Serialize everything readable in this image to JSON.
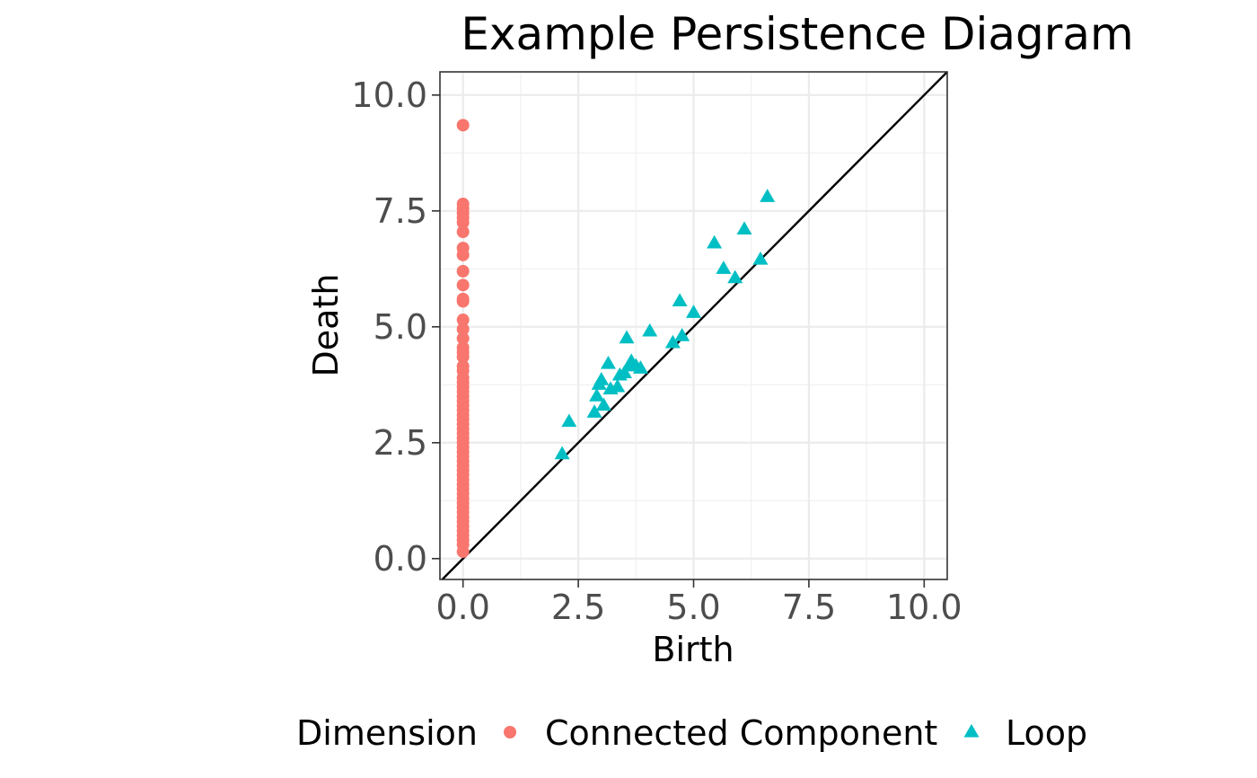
{
  "chart_data": {
    "type": "scatter",
    "title": "Example Persistence Diagram",
    "xlabel": "Birth",
    "ylabel": "Death",
    "xlim": [
      -0.5,
      10.5
    ],
    "ylim": [
      -0.45,
      10.5
    ],
    "x_ticks": [
      0.0,
      2.5,
      5.0,
      7.5,
      10.0
    ],
    "x_tick_labels": [
      "0.0",
      "2.5",
      "5.0",
      "7.5",
      "10.0"
    ],
    "y_ticks": [
      0.0,
      2.5,
      5.0,
      7.5,
      10.0
    ],
    "y_tick_labels": [
      "0.0",
      "2.5",
      "5.0",
      "7.5",
      "10.0"
    ],
    "grid": true,
    "diagonal_reference_line": true,
    "legend_position": "bottom",
    "legend_title": "Dimension",
    "series": [
      {
        "name": "Connected Component",
        "marker": "circle",
        "color": "#F8766D",
        "points": [
          [
            0,
            9.35
          ],
          [
            0,
            7.65
          ],
          [
            0,
            7.55
          ],
          [
            0,
            7.45
          ],
          [
            0,
            7.35
          ],
          [
            0,
            7.25
          ],
          [
            0,
            7.05
          ],
          [
            0,
            6.7
          ],
          [
            0,
            6.55
          ],
          [
            0,
            6.2
          ],
          [
            0,
            5.9
          ],
          [
            0,
            5.6
          ],
          [
            0,
            5.55
          ],
          [
            0,
            5.15
          ],
          [
            0,
            4.95
          ],
          [
            0,
            4.75
          ],
          [
            0,
            4.55
          ],
          [
            0,
            4.45
          ],
          [
            0,
            4.35
          ],
          [
            0,
            4.15
          ],
          [
            0,
            4.05
          ],
          [
            0,
            3.9
          ],
          [
            0,
            3.8
          ],
          [
            0,
            3.7
          ],
          [
            0,
            3.6
          ],
          [
            0,
            3.5
          ],
          [
            0,
            3.4
          ],
          [
            0,
            3.3
          ],
          [
            0,
            3.2
          ],
          [
            0,
            3.1
          ],
          [
            0,
            3.0
          ],
          [
            0,
            2.9
          ],
          [
            0,
            2.8
          ],
          [
            0,
            2.7
          ],
          [
            0,
            2.6
          ],
          [
            0,
            2.5
          ],
          [
            0,
            2.4
          ],
          [
            0,
            2.3
          ],
          [
            0,
            2.2
          ],
          [
            0,
            2.1
          ],
          [
            0,
            2.0
          ],
          [
            0,
            1.9
          ],
          [
            0,
            1.8
          ],
          [
            0,
            1.7
          ],
          [
            0,
            1.6
          ],
          [
            0,
            1.5
          ],
          [
            0,
            1.4
          ],
          [
            0,
            1.3
          ],
          [
            0,
            1.2
          ],
          [
            0,
            1.1
          ],
          [
            0,
            1.0
          ],
          [
            0,
            0.9
          ],
          [
            0,
            0.8
          ],
          [
            0,
            0.7
          ],
          [
            0,
            0.6
          ],
          [
            0,
            0.5
          ],
          [
            0,
            0.4
          ],
          [
            0,
            0.3
          ],
          [
            0,
            0.15
          ]
        ]
      },
      {
        "name": "Loop",
        "marker": "triangle",
        "color": "#00BFC4",
        "points": [
          [
            2.15,
            2.25
          ],
          [
            2.3,
            2.95
          ],
          [
            2.85,
            3.15
          ],
          [
            2.9,
            3.5
          ],
          [
            2.95,
            3.75
          ],
          [
            3.0,
            3.85
          ],
          [
            3.05,
            3.3
          ],
          [
            3.15,
            4.2
          ],
          [
            3.2,
            3.65
          ],
          [
            3.35,
            3.7
          ],
          [
            3.4,
            3.95
          ],
          [
            3.5,
            4.0
          ],
          [
            3.55,
            4.75
          ],
          [
            3.6,
            4.15
          ],
          [
            3.65,
            4.25
          ],
          [
            3.75,
            4.15
          ],
          [
            3.85,
            4.1
          ],
          [
            4.05,
            4.9
          ],
          [
            4.55,
            4.65
          ],
          [
            4.7,
            5.55
          ],
          [
            4.75,
            4.8
          ],
          [
            5.0,
            5.3
          ],
          [
            5.45,
            6.8
          ],
          [
            5.65,
            6.25
          ],
          [
            5.9,
            6.05
          ],
          [
            6.1,
            7.1
          ],
          [
            6.45,
            6.45
          ],
          [
            6.6,
            7.8
          ]
        ]
      }
    ]
  }
}
